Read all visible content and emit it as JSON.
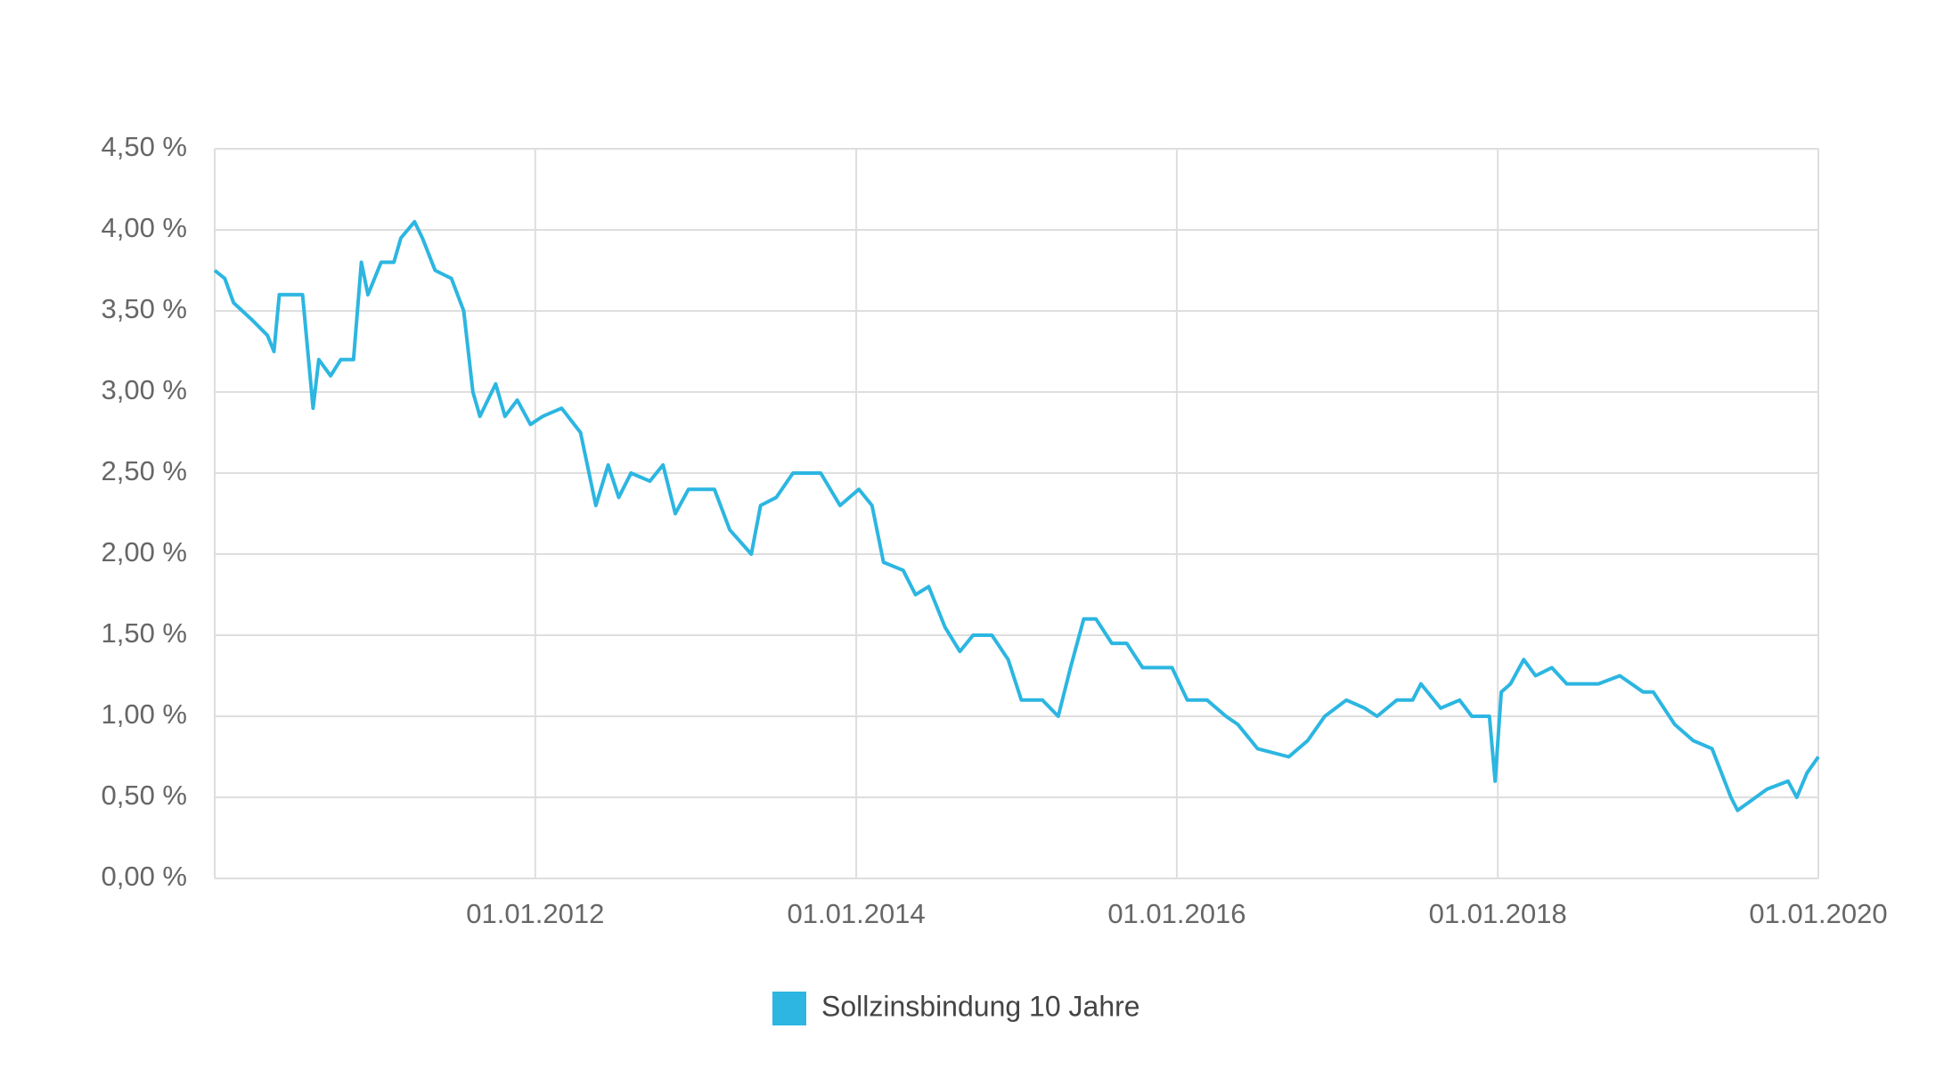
{
  "chart_data": {
    "type": "line",
    "x": [
      "2010-01-01",
      "2010-01-24",
      "2010-02-13",
      "2010-03-25",
      "2010-05-01",
      "2010-05-16",
      "2010-05-28",
      "2010-07-20",
      "2010-08-13",
      "2010-08-26",
      "2010-09-22",
      "2010-10-15",
      "2010-11-13",
      "2010-12-01",
      "2010-12-16",
      "2011-01-15",
      "2011-02-13",
      "2011-03-01",
      "2011-04-01",
      "2011-04-19",
      "2011-05-18",
      "2011-06-24",
      "2011-07-22",
      "2011-08-12",
      "2011-08-28",
      "2011-10-03",
      "2011-10-24",
      "2011-11-21",
      "2011-12-21",
      "2012-01-18",
      "2012-03-01",
      "2012-04-13",
      "2012-05-18",
      "2012-06-15",
      "2012-07-09",
      "2012-08-06",
      "2012-09-18",
      "2012-10-18",
      "2012-11-15",
      "2012-12-15",
      "2013-02-12",
      "2013-03-19",
      "2013-05-07",
      "2013-05-28",
      "2013-07-03",
      "2013-08-10",
      "2013-10-12",
      "2013-11-25",
      "2014-01-07",
      "2014-02-06",
      "2014-03-04",
      "2014-04-18",
      "2014-05-16",
      "2014-06-15",
      "2014-07-22",
      "2014-08-25",
      "2014-09-24",
      "2014-11-06",
      "2014-12-13",
      "2015-01-12",
      "2015-03-01",
      "2015-04-06",
      "2015-05-04",
      "2015-06-03",
      "2015-07-01",
      "2015-08-06",
      "2015-09-09",
      "2015-10-15",
      "2015-12-21",
      "2016-01-25",
      "2016-03-10",
      "2016-04-22",
      "2016-05-19",
      "2016-07-03",
      "2016-09-12",
      "2016-10-25",
      "2016-12-03",
      "2017-01-21",
      "2017-03-04",
      "2017-04-01",
      "2017-05-16",
      "2017-06-21",
      "2017-07-10",
      "2017-08-24",
      "2017-10-06",
      "2017-11-03",
      "2017-12-13",
      "2017-12-26",
      "2018-01-09",
      "2018-01-30",
      "2018-03-01",
      "2018-03-28",
      "2018-05-04",
      "2018-06-07",
      "2018-08-18",
      "2018-10-06",
      "2018-11-28",
      "2018-12-21",
      "2019-02-08",
      "2019-03-22",
      "2019-05-04",
      "2019-06-16",
      "2019-07-01",
      "2019-08-01",
      "2019-09-06",
      "2019-10-24",
      "2019-11-13",
      "2019-12-06",
      "2020-01-01"
    ],
    "series": [
      {
        "name": "Sollzinsbindung 10 Jahre",
        "color": "#2cb6e1",
        "values": [
          3.75,
          3.7,
          3.55,
          3.45,
          3.35,
          3.25,
          3.6,
          3.6,
          2.9,
          3.2,
          3.1,
          3.2,
          3.2,
          3.8,
          3.6,
          3.8,
          3.8,
          3.95,
          4.05,
          3.95,
          3.75,
          3.7,
          3.5,
          3.0,
          2.85,
          3.05,
          2.85,
          2.95,
          2.8,
          2.85,
          2.9,
          2.75,
          2.3,
          2.55,
          2.35,
          2.5,
          2.45,
          2.55,
          2.25,
          2.4,
          2.4,
          2.15,
          2.0,
          2.3,
          2.35,
          2.5,
          2.5,
          2.3,
          2.4,
          2.3,
          1.95,
          1.9,
          1.75,
          1.8,
          1.55,
          1.4,
          1.5,
          1.5,
          1.35,
          1.1,
          1.1,
          1.0,
          1.3,
          1.6,
          1.6,
          1.45,
          1.45,
          1.3,
          1.3,
          1.1,
          1.1,
          1.0,
          0.95,
          0.8,
          0.75,
          0.85,
          1.0,
          1.1,
          1.05,
          1.0,
          1.1,
          1.1,
          1.2,
          1.05,
          1.1,
          1.0,
          1.0,
          0.6,
          1.15,
          1.2,
          1.35,
          1.25,
          1.3,
          1.2,
          1.2,
          1.25,
          1.15,
          1.15,
          0.95,
          0.85,
          0.8,
          0.5,
          0.42,
          0.48,
          0.55,
          0.6,
          0.5,
          0.65,
          0.75
        ]
      }
    ],
    "xlim": [
      "2010-01-01",
      "2020-01-01"
    ],
    "xticks": [
      {
        "value": "2012-01-01",
        "label": "01.01.2012"
      },
      {
        "value": "2014-01-01",
        "label": "01.01.2014"
      },
      {
        "value": "2016-01-01",
        "label": "01.01.2016"
      },
      {
        "value": "2018-01-01",
        "label": "01.01.2018"
      },
      {
        "value": "2020-01-01",
        "label": "01.01.2020"
      }
    ],
    "ylim": [
      0,
      4.5
    ],
    "yticks": [
      {
        "value": 0,
        "label": "0,00 %"
      },
      {
        "value": 0.5,
        "label": "0,50 %"
      },
      {
        "value": 1,
        "label": "1,00 %"
      },
      {
        "value": 1.5,
        "label": "1,50 %"
      },
      {
        "value": 2,
        "label": "2,00 %"
      },
      {
        "value": 2.5,
        "label": "2,50 %"
      },
      {
        "value": 3,
        "label": "3,00 %"
      },
      {
        "value": 3.5,
        "label": "3,50 %"
      },
      {
        "value": 4,
        "label": "4,00 %"
      },
      {
        "value": 4.5,
        "label": "4,50 %"
      }
    ],
    "grid": true
  }
}
